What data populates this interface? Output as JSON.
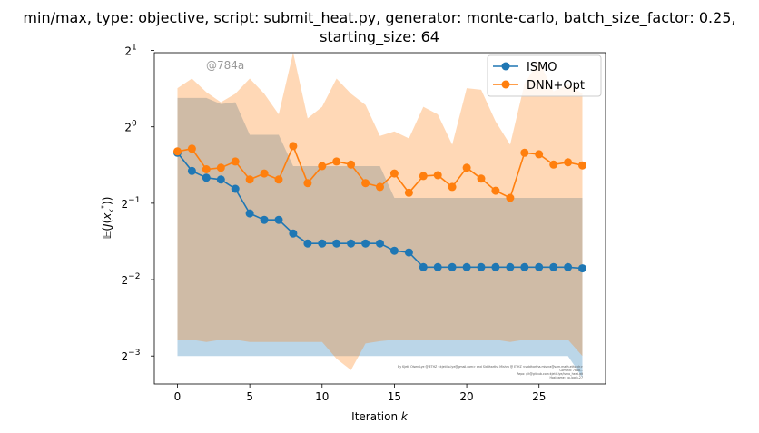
{
  "chart_data": {
    "type": "line",
    "title_lines": [
      "min/max, type: objective, script: submit_heat.py, generator: monte-carlo, batch_size_factor: 0.25,",
      "starting_size: 64"
    ],
    "xlabel": "Iteration k",
    "ylabel": "E(J(x_k*))",
    "yscale": "log2",
    "xlim": [
      -1.6,
      29.6
    ],
    "ylim": [
      0.097,
      1.96
    ],
    "x_ticks": [
      0,
      5,
      10,
      15,
      20,
      25
    ],
    "y_ticks": [
      {
        "value": 0.125,
        "base": "2",
        "exp": "−3"
      },
      {
        "value": 0.25,
        "base": "2",
        "exp": "−2"
      },
      {
        "value": 0.5,
        "base": "2",
        "exp": "−1"
      },
      {
        "value": 1,
        "base": "2",
        "exp": "0"
      },
      {
        "value": 2,
        "base": "2",
        "exp": "1"
      }
    ],
    "grid": false,
    "legend_position": "upper right",
    "annotation": "@784a",
    "credits": [
      "By Kjetil Olsen Lye @ ETHZ <kjetil.o.lye@gmail.com> and Siddhartha Mishra @ ETHZ <siddhartha.mishra@sam.math.ethz.ch>",
      "Commit: 784a...",
      "Repo: git@github.com:kjetil-lye/ismo_heat.git",
      "Hostname: no-login-27"
    ],
    "x": [
      0,
      1,
      2,
      3,
      4,
      5,
      6,
      7,
      8,
      9,
      10,
      11,
      12,
      13,
      14,
      15,
      16,
      17,
      18,
      19,
      20,
      21,
      22,
      23,
      24,
      25,
      26,
      27,
      28
    ],
    "series": [
      {
        "name": "ISMO",
        "color": "#1f77b4",
        "band_alpha": 0.3,
        "values": [
          0.79,
          0.67,
          0.63,
          0.62,
          0.57,
          0.456,
          0.43,
          0.43,
          0.38,
          0.347,
          0.347,
          0.347,
          0.347,
          0.347,
          0.347,
          0.325,
          0.32,
          0.28,
          0.28,
          0.28,
          0.28,
          0.28,
          0.28,
          0.28,
          0.28,
          0.28,
          0.28,
          0.28,
          0.277
        ],
        "upper": [
          1.3,
          1.3,
          1.3,
          1.23,
          1.25,
          0.93,
          0.93,
          0.93,
          0.7,
          0.7,
          0.7,
          0.7,
          0.7,
          0.7,
          0.7,
          0.525,
          0.525,
          0.525,
          0.525,
          0.525,
          0.525,
          0.525,
          0.525,
          0.525,
          0.525,
          0.525,
          0.525,
          0.525,
          0.525
        ],
        "lower": [
          0.125,
          0.125,
          0.125,
          0.125,
          0.125,
          0.125,
          0.125,
          0.125,
          0.125,
          0.125,
          0.125,
          0.125,
          0.125,
          0.125,
          0.125,
          0.125,
          0.125,
          0.125,
          0.125,
          0.125,
          0.125,
          0.125,
          0.125,
          0.125,
          0.125,
          0.125,
          0.125,
          0.125,
          0.103
        ]
      },
      {
        "name": "DNN+Opt",
        "color": "#ff7f0e",
        "band_alpha": 0.3,
        "values": [
          0.8,
          0.82,
          0.68,
          0.69,
          0.73,
          0.62,
          0.655,
          0.62,
          0.84,
          0.6,
          0.7,
          0.73,
          0.71,
          0.6,
          0.58,
          0.655,
          0.55,
          0.64,
          0.645,
          0.58,
          0.69,
          0.625,
          0.56,
          0.525,
          0.79,
          0.78,
          0.71,
          0.725,
          0.705
        ],
        "upper": [
          1.42,
          1.55,
          1.37,
          1.25,
          1.35,
          1.55,
          1.35,
          1.12,
          3.3,
          1.08,
          1.2,
          1.55,
          1.35,
          1.22,
          0.92,
          0.96,
          0.9,
          1.2,
          1.12,
          0.85,
          1.42,
          1.4,
          1.05,
          0.85,
          1.48,
          1.82,
          1.38,
          1.47,
          1.35
        ],
        "lower": [
          0.145,
          0.145,
          0.142,
          0.145,
          0.145,
          0.142,
          0.142,
          0.142,
          0.142,
          0.142,
          0.142,
          0.122,
          0.11,
          0.14,
          0.143,
          0.145,
          0.145,
          0.145,
          0.145,
          0.145,
          0.145,
          0.145,
          0.145,
          0.142,
          0.145,
          0.145,
          0.145,
          0.145,
          0.125
        ]
      }
    ]
  }
}
